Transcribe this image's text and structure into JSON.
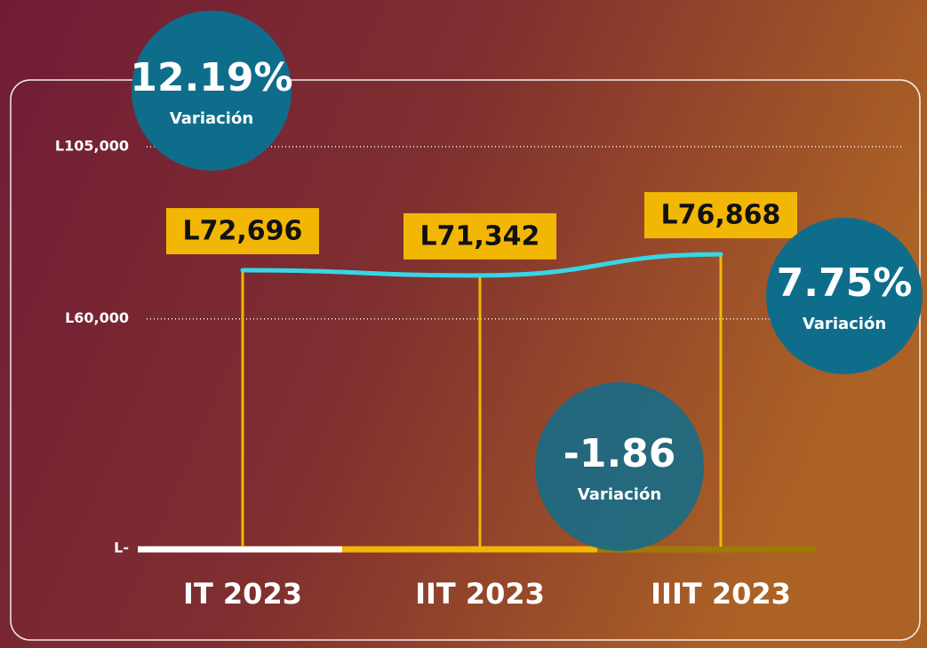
{
  "chart_data": {
    "type": "line",
    "categories": [
      "IT 2023",
      "IIT 2023",
      "IIIT 2023"
    ],
    "values": [
      72696,
      71342,
      76868
    ],
    "value_labels": [
      "L72,696",
      "L71,342",
      "L76,868"
    ],
    "color": "#36d6e7",
    "category_colors": [
      "#ffffff",
      "#f2b705",
      "#a07a08"
    ],
    "ylim": [
      0,
      105000
    ],
    "yticks": [
      {
        "value": 0,
        "label": "L-"
      },
      {
        "value": 60000,
        "label": "L60,000"
      },
      {
        "value": 105000,
        "label": "L105,000"
      }
    ],
    "grid": true,
    "variation_caption": "Variación",
    "variations": [
      {
        "value": 12.19,
        "label": "12.19%"
      },
      {
        "value": -1.86
      },
      {
        "value": 7.75,
        "label": "7.75%"
      }
    ]
  }
}
